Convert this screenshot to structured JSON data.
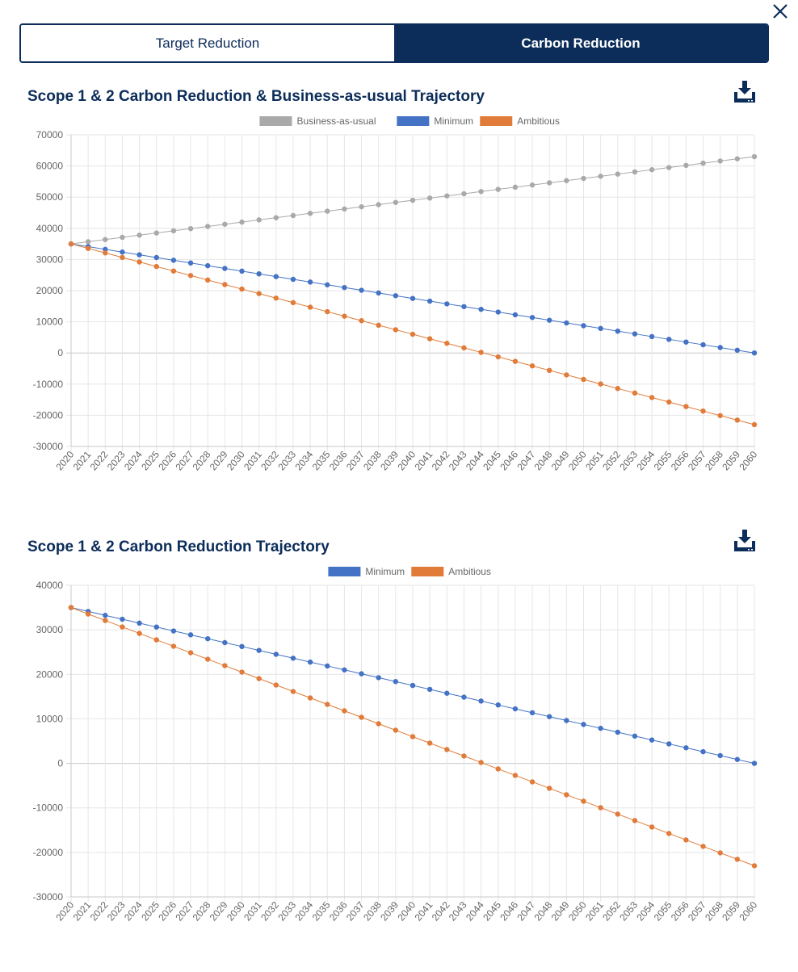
{
  "tabs": [
    {
      "label": "Target Reduction",
      "active": false
    },
    {
      "label": "Carbon Reduction",
      "active": true
    }
  ],
  "icons": {
    "close": "close-icon",
    "download": "download-icon"
  },
  "colors": {
    "navy": "#0c2d5a",
    "bau": "#a9a9a9",
    "minimum": "#4472c4",
    "ambitious": "#e07b39"
  },
  "chart_data": [
    {
      "type": "line",
      "title": "Scope 1 & 2 Carbon Reduction & Business-as-usual Trajectory",
      "legend_position": "top-center",
      "grid": true,
      "ylim": [
        -30000,
        70000
      ],
      "yticks": [
        70000,
        60000,
        50000,
        40000,
        30000,
        20000,
        10000,
        0,
        -10000,
        -20000,
        -30000
      ],
      "x": [
        2020,
        2021,
        2022,
        2023,
        2024,
        2025,
        2026,
        2027,
        2028,
        2029,
        2030,
        2031,
        2032,
        2033,
        2034,
        2035,
        2036,
        2037,
        2038,
        2039,
        2040,
        2041,
        2042,
        2043,
        2044,
        2045,
        2046,
        2047,
        2048,
        2049,
        2050,
        2051,
        2052,
        2053,
        2054,
        2055,
        2056,
        2057,
        2058,
        2059,
        2060
      ],
      "series": [
        {
          "name": "Business-as-usual",
          "color": "#a9a9a9",
          "values": [
            35000,
            35700,
            36400,
            37100,
            37800,
            38500,
            39200,
            39900,
            40600,
            41300,
            42000,
            42700,
            43400,
            44100,
            44800,
            45500,
            46200,
            46900,
            47600,
            48300,
            49000,
            49700,
            50400,
            51100,
            51800,
            52500,
            53200,
            53900,
            54600,
            55300,
            56000,
            56700,
            57400,
            58100,
            58800,
            59500,
            60200,
            60900,
            61600,
            62300,
            63000
          ]
        },
        {
          "name": "Minimum",
          "color": "#4472c4",
          "values": [
            35000,
            34125,
            33250,
            32375,
            31500,
            30625,
            29750,
            28875,
            28000,
            27125,
            26250,
            25375,
            24500,
            23625,
            22750,
            21875,
            21000,
            20125,
            19250,
            18375,
            17500,
            16625,
            15750,
            14875,
            14000,
            13125,
            12250,
            11375,
            10500,
            9625,
            8750,
            7875,
            7000,
            6125,
            5250,
            4375,
            3500,
            2625,
            1750,
            875,
            0
          ]
        },
        {
          "name": "Ambitious",
          "color": "#e07b39",
          "values": [
            35000,
            33550,
            32100,
            30650,
            29200,
            27750,
            26300,
            24850,
            23400,
            21950,
            20500,
            19050,
            17600,
            16150,
            14700,
            13250,
            11800,
            10350,
            8900,
            7450,
            6000,
            4550,
            3100,
            1650,
            200,
            -1250,
            -2700,
            -4150,
            -5600,
            -7050,
            -8500,
            -9950,
            -11400,
            -12850,
            -14300,
            -15750,
            -17200,
            -18650,
            -20100,
            -21550,
            -23000
          ]
        }
      ]
    },
    {
      "type": "line",
      "title": "Scope 1 & 2 Carbon Reduction Trajectory",
      "legend_position": "top-center",
      "grid": true,
      "ylim": [
        -30000,
        40000
      ],
      "yticks": [
        40000,
        30000,
        20000,
        10000,
        0,
        -10000,
        -20000,
        -30000
      ],
      "x": [
        2020,
        2021,
        2022,
        2023,
        2024,
        2025,
        2026,
        2027,
        2028,
        2029,
        2030,
        2031,
        2032,
        2033,
        2034,
        2035,
        2036,
        2037,
        2038,
        2039,
        2040,
        2041,
        2042,
        2043,
        2044,
        2045,
        2046,
        2047,
        2048,
        2049,
        2050,
        2051,
        2052,
        2053,
        2054,
        2055,
        2056,
        2057,
        2058,
        2059,
        2060
      ],
      "series": [
        {
          "name": "Minimum",
          "color": "#4472c4",
          "values": [
            35000,
            34125,
            33250,
            32375,
            31500,
            30625,
            29750,
            28875,
            28000,
            27125,
            26250,
            25375,
            24500,
            23625,
            22750,
            21875,
            21000,
            20125,
            19250,
            18375,
            17500,
            16625,
            15750,
            14875,
            14000,
            13125,
            12250,
            11375,
            10500,
            9625,
            8750,
            7875,
            7000,
            6125,
            5250,
            4375,
            3500,
            2625,
            1750,
            875,
            0
          ]
        },
        {
          "name": "Ambitious",
          "color": "#e07b39",
          "values": [
            35000,
            33550,
            32100,
            30650,
            29200,
            27750,
            26300,
            24850,
            23400,
            21950,
            20500,
            19050,
            17600,
            16150,
            14700,
            13250,
            11800,
            10350,
            8900,
            7450,
            6000,
            4550,
            3100,
            1650,
            200,
            -1250,
            -2700,
            -4150,
            -5600,
            -7050,
            -8500,
            -9950,
            -11400,
            -12850,
            -14300,
            -15750,
            -17200,
            -18650,
            -20100,
            -21550,
            -23000
          ]
        }
      ]
    }
  ]
}
